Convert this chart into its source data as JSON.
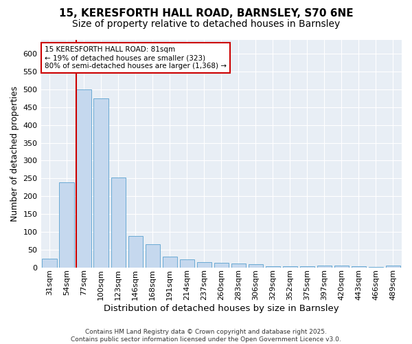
{
  "title1": "15, KERESFORTH HALL ROAD, BARNSLEY, S70 6NE",
  "title2": "Size of property relative to detached houses in Barnsley",
  "xlabel": "Distribution of detached houses by size in Barnsley",
  "ylabel": "Number of detached properties",
  "bar_labels": [
    "31sqm",
    "54sqm",
    "77sqm",
    "100sqm",
    "123sqm",
    "146sqm",
    "168sqm",
    "191sqm",
    "214sqm",
    "237sqm",
    "260sqm",
    "283sqm",
    "306sqm",
    "329sqm",
    "352sqm",
    "375sqm",
    "397sqm",
    "420sqm",
    "443sqm",
    "466sqm",
    "489sqm"
  ],
  "bar_values": [
    25,
    238,
    500,
    475,
    253,
    88,
    65,
    30,
    22,
    15,
    13,
    10,
    8,
    3,
    3,
    3,
    5,
    5,
    3,
    2,
    5
  ],
  "bar_color": "#c5d8ee",
  "bar_edgecolor": "#6aaad4",
  "vline_x_index": 2,
  "vline_color": "#cc0000",
  "annotation_text": "15 KERESFORTH HALL ROAD: 81sqm\n← 19% of detached houses are smaller (323)\n80% of semi-detached houses are larger (1,368) →",
  "annotation_box_edgecolor": "#cc0000",
  "ylim": [
    0,
    640
  ],
  "bg_color": "#e8eef5",
  "footer": "Contains HM Land Registry data © Crown copyright and database right 2025.\nContains public sector information licensed under the Open Government Licence v3.0.",
  "title1_fontsize": 11,
  "title2_fontsize": 10,
  "xlabel_fontsize": 9.5,
  "ylabel_fontsize": 9,
  "tick_fontsize": 8,
  "annotation_fontsize": 7.5,
  "footer_fontsize": 6.5
}
